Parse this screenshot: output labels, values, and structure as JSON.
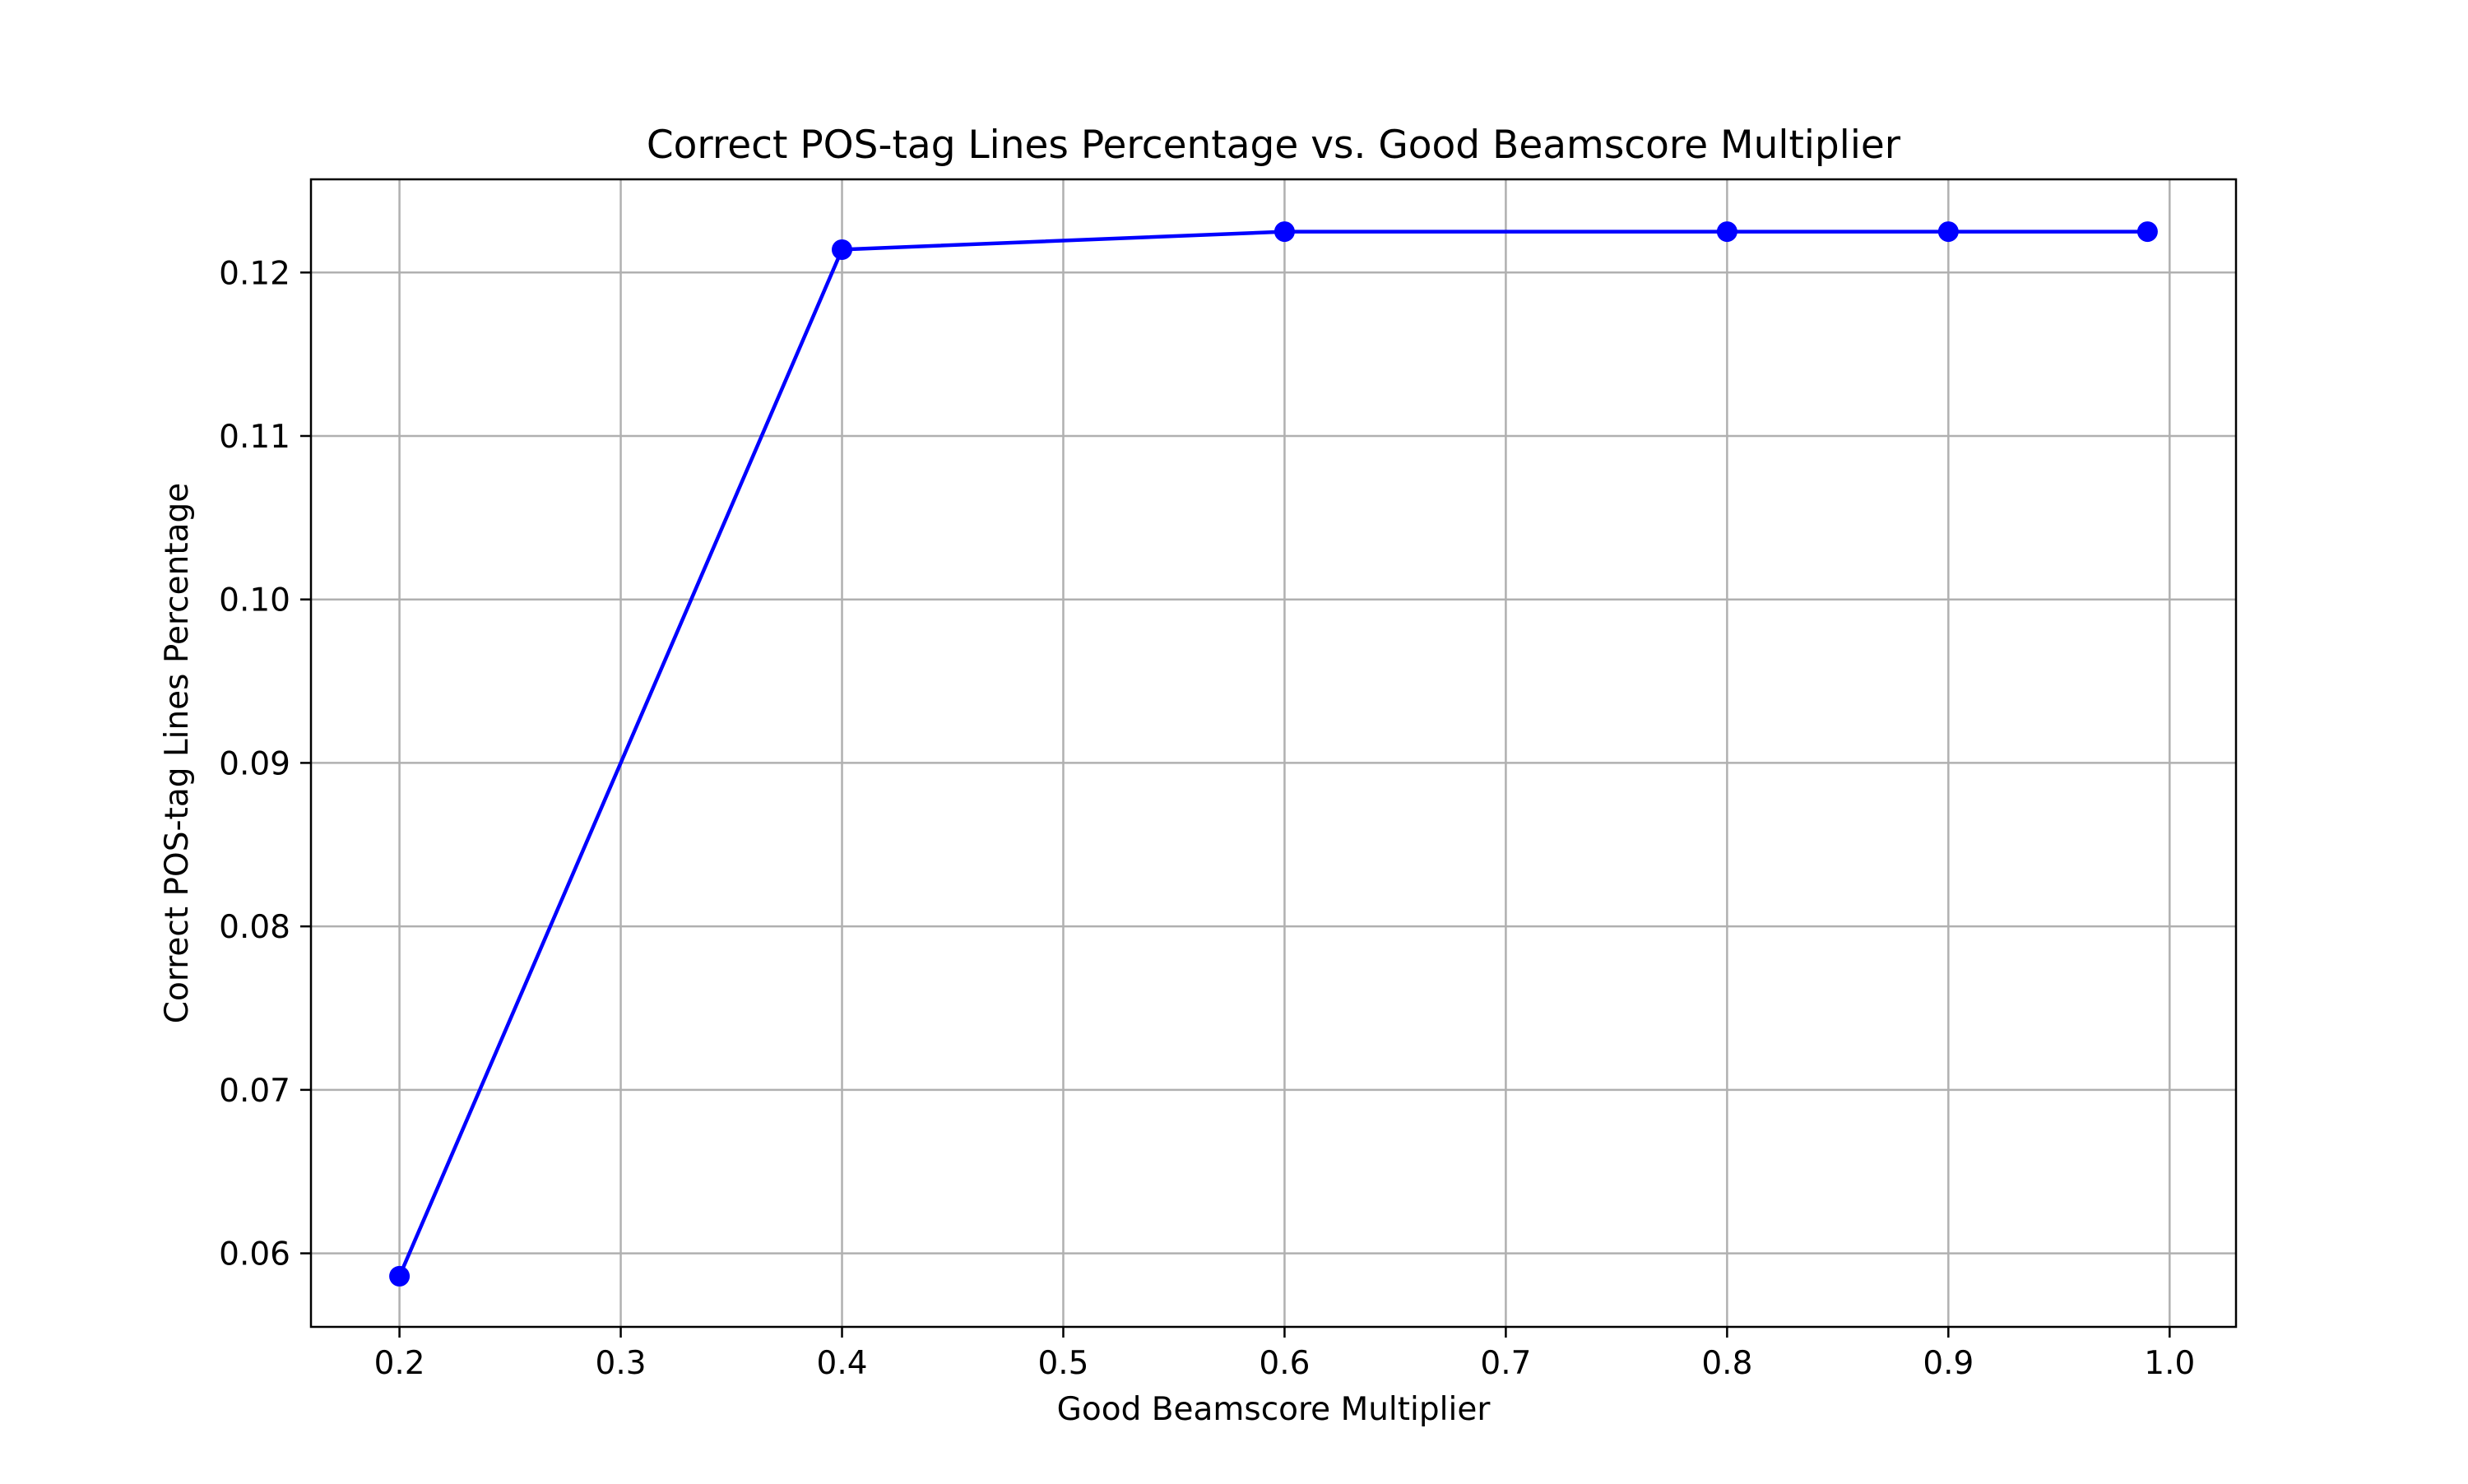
{
  "chart_data": {
    "type": "line",
    "title": "Correct POS-tag Lines Percentage vs. Good Beamscore Multiplier",
    "xlabel": "Good Beamscore Multiplier",
    "ylabel": "Correct POS-tag Lines Percentage",
    "xlim": [
      0.16,
      1.03
    ],
    "ylim": [
      0.0555,
      0.1257
    ],
    "xticks": [
      0.2,
      0.3,
      0.4,
      0.5,
      0.6,
      0.7,
      0.8,
      0.9,
      1.0
    ],
    "xtick_labels": [
      "0.2",
      "0.3",
      "0.4",
      "0.5",
      "0.6",
      "0.7",
      "0.8",
      "0.9",
      "1.0"
    ],
    "yticks": [
      0.06,
      0.07,
      0.08,
      0.09,
      0.1,
      0.11,
      0.12
    ],
    "ytick_labels": [
      "0.06",
      "0.07",
      "0.08",
      "0.09",
      "0.10",
      "0.11",
      "0.12"
    ],
    "grid": true,
    "series": [
      {
        "color": "#0000ff",
        "marker": "circle",
        "x": [
          0.2,
          0.4,
          0.6,
          0.8,
          0.9,
          0.99
        ],
        "y": [
          0.0586,
          0.1214,
          0.1225,
          0.1225,
          0.1225,
          0.1225
        ]
      }
    ]
  }
}
